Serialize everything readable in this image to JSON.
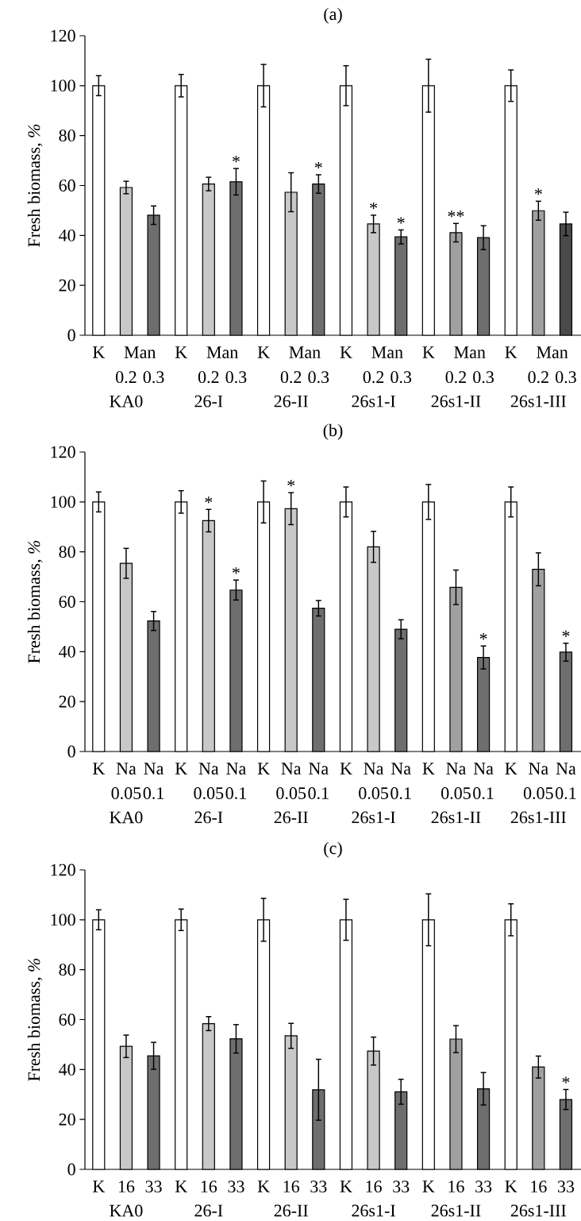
{
  "chart_data": [
    {
      "type": "bar",
      "title": "(a)",
      "ylabel": "Fresh biomass, *%*",
      "categories": [
        "K",
        "0.2",
        "0.3",
        "K",
        "0.2",
        "0.3",
        "K",
        "0.2",
        "0.3",
        "K",
        "0.2",
        "0.3",
        "K",
        "0.2",
        "0.3",
        "K",
        "0.2",
        "0.3"
      ],
      "values": [
        100,
        59.2,
        48.1,
        100,
        60.6,
        61.5,
        100,
        57.3,
        60.6,
        100,
        44.6,
        39.4,
        100,
        41.1,
        39.1,
        100,
        49.9,
        44.6
      ],
      "errors": [
        4,
        2.5,
        3.7,
        4.5,
        2.7,
        5.3,
        8.5,
        7.8,
        3.7,
        8,
        3.5,
        2.8,
        10.6,
        3.7,
        4.8,
        6.3,
        3.8,
        4.7
      ],
      "colors": [
        "#ffffff",
        "#c8c8c8",
        "#6e6e6e",
        "#ffffff",
        "#c8c8c8",
        "#6e6e6e",
        "#ffffff",
        "#c8c8c8",
        "#6e6e6e",
        "#ffffff",
        "#c8c8c8",
        "#6e6e6e",
        "#ffffff",
        "#a0a0a0",
        "#6e6e6e",
        "#ffffff",
        "#a0a0a0",
        "#4a4a4a"
      ],
      "value_labels": [
        null,
        null,
        null,
        null,
        null,
        "*",
        null,
        null,
        "*",
        null,
        "*",
        "*",
        null,
        "**",
        null,
        null,
        "*",
        null
      ],
      "ylim": [
        0,
        120
      ],
      "yticks": [
        0,
        20,
        40,
        60,
        80,
        100,
        120
      ],
      "annotations": [
        "Man",
        "Man",
        "Man",
        "Man",
        "Man",
        "Man",
        "KA0",
        "26-I",
        "26-II",
        "26s1-I",
        "26s1-II",
        "26s1-III"
      ]
    },
    {
      "type": "bar",
      "title": "(b)",
      "ylabel": "Fresh biomass, *%*",
      "categories": [
        "K",
        "Na 0.05",
        "Na 0.1",
        "K",
        "Na 0.05",
        "Na 0.1",
        "K",
        "Na 0.05",
        "Na 0.1",
        "K",
        "Na 0.05",
        "Na 0.1",
        "K",
        "Na 0.05",
        "Na 0.1",
        "K",
        "Na 0.05",
        "Na 0.1"
      ],
      "values": [
        100,
        75.4,
        52.3,
        100,
        92.5,
        64.7,
        100,
        97.3,
        57.4,
        100,
        82,
        49,
        100,
        65.8,
        37.7,
        100,
        73,
        39.8
      ],
      "errors": [
        4,
        6,
        3.8,
        4.5,
        4.5,
        4,
        8.4,
        6.4,
        3.1,
        6,
        6.2,
        3.8,
        7,
        6.9,
        4.6,
        6,
        6.6,
        3.6
      ],
      "colors": [
        "#ffffff",
        "#c8c8c8",
        "#6e6e6e",
        "#ffffff",
        "#c8c8c8",
        "#6e6e6e",
        "#ffffff",
        "#c8c8c8",
        "#6e6e6e",
        "#ffffff",
        "#c8c8c8",
        "#6e6e6e",
        "#ffffff",
        "#a0a0a0",
        "#6e6e6e",
        "#ffffff",
        "#a0a0a0",
        "#6e6e6e"
      ],
      "value_labels": [
        null,
        null,
        null,
        null,
        "*",
        "*",
        null,
        "*",
        null,
        null,
        null,
        null,
        null,
        null,
        "*",
        null,
        null,
        "*"
      ],
      "ylim": [
        0,
        120
      ],
      "yticks": [
        0,
        20,
        40,
        60,
        80,
        100,
        120
      ],
      "annotations": [
        "KA0",
        "26-I",
        "26-II",
        "26s1-I",
        "26s1-II",
        "26s1-III"
      ]
    },
    {
      "type": "bar",
      "title": "(c)",
      "ylabel": "Fresh biomass, *%*",
      "categories": [
        "K",
        "16",
        "33",
        "K",
        "16",
        "33",
        "K",
        "16",
        "33",
        "K",
        "16",
        "33",
        "K",
        "16",
        "33",
        "K",
        "16",
        "33"
      ],
      "values": [
        100,
        49.3,
        45.5,
        100,
        58.4,
        52.3,
        100,
        53.5,
        31.9,
        100,
        47.4,
        31.1,
        100,
        52.2,
        32.3,
        100,
        41,
        28
      ],
      "errors": [
        4,
        4.5,
        5.4,
        4.3,
        2.8,
        5.7,
        8.6,
        5,
        12.2,
        8.2,
        5.6,
        5,
        10.4,
        5.4,
        6.5,
        6.4,
        4.4,
        4
      ],
      "colors": [
        "#ffffff",
        "#c8c8c8",
        "#6e6e6e",
        "#ffffff",
        "#c8c8c8",
        "#6e6e6e",
        "#ffffff",
        "#c8c8c8",
        "#6e6e6e",
        "#ffffff",
        "#c8c8c8",
        "#6e6e6e",
        "#ffffff",
        "#a0a0a0",
        "#6e6e6e",
        "#ffffff",
        "#a0a0a0",
        "#6e6e6e"
      ],
      "value_labels": [
        null,
        null,
        null,
        null,
        null,
        null,
        null,
        null,
        null,
        null,
        null,
        null,
        null,
        null,
        null,
        null,
        null,
        "*"
      ],
      "ylim": [
        0,
        120
      ],
      "yticks": [
        0,
        20,
        40,
        60,
        80,
        100,
        120
      ],
      "annotations": [
        "KA0",
        "26-I",
        "26-II",
        "26s1-I",
        "26s1-II",
        "26s1-III"
      ]
    }
  ]
}
